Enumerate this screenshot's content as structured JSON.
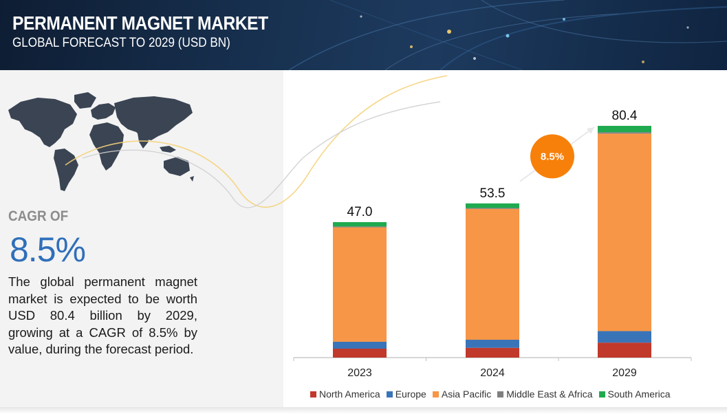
{
  "header": {
    "title": "PERMANENT MAGNET MARKET",
    "subtitle": "GLOBAL FORECAST TO 2029 (USD BN)"
  },
  "left_panel": {
    "cagr_label": "CAGR OF",
    "cagr_value": "8.5%",
    "description": "The global permanent magnet market is expected to be worth USD 80.4 billion by 2029, growing at a CAGR of 8.5% by value, during the forecast period."
  },
  "colors": {
    "header_bg": "#17304f",
    "cagr_blue": "#2f6fba",
    "badge_orange": "#f7800a",
    "north_america": "#c0392b",
    "europe": "#3a74b8",
    "asia_pacific": "#f79646",
    "middle_east_africa": "#7f7f7f",
    "south_america": "#1faa4f"
  },
  "chart_data": {
    "type": "bar",
    "stacked": true,
    "categories": [
      "2023",
      "2024",
      "2029"
    ],
    "totals": [
      47.0,
      53.5,
      80.4
    ],
    "total_labels": [
      "47.0",
      "53.5",
      "80.4"
    ],
    "series": [
      {
        "name": "North America",
        "color": "#c0392b",
        "values": [
          3.1,
          3.4,
          5.2
        ]
      },
      {
        "name": "Europe",
        "color": "#3a74b8",
        "values": [
          2.4,
          2.8,
          4.0
        ]
      },
      {
        "name": "Asia Pacific",
        "color": "#f79646",
        "values": [
          39.7,
          45.4,
          68.5
        ]
      },
      {
        "name": "Middle East & Africa",
        "color": "#7f7f7f",
        "values": [
          0.3,
          0.3,
          0.5
        ]
      },
      {
        "name": "South America",
        "color": "#1faa4f",
        "values": [
          1.5,
          1.6,
          2.2
        ]
      }
    ],
    "annotation": {
      "text": "8.5%",
      "from": "2024",
      "to": "2029"
    },
    "ylim": [
      0,
      100
    ],
    "grid": false,
    "legend_position": "bottom"
  }
}
